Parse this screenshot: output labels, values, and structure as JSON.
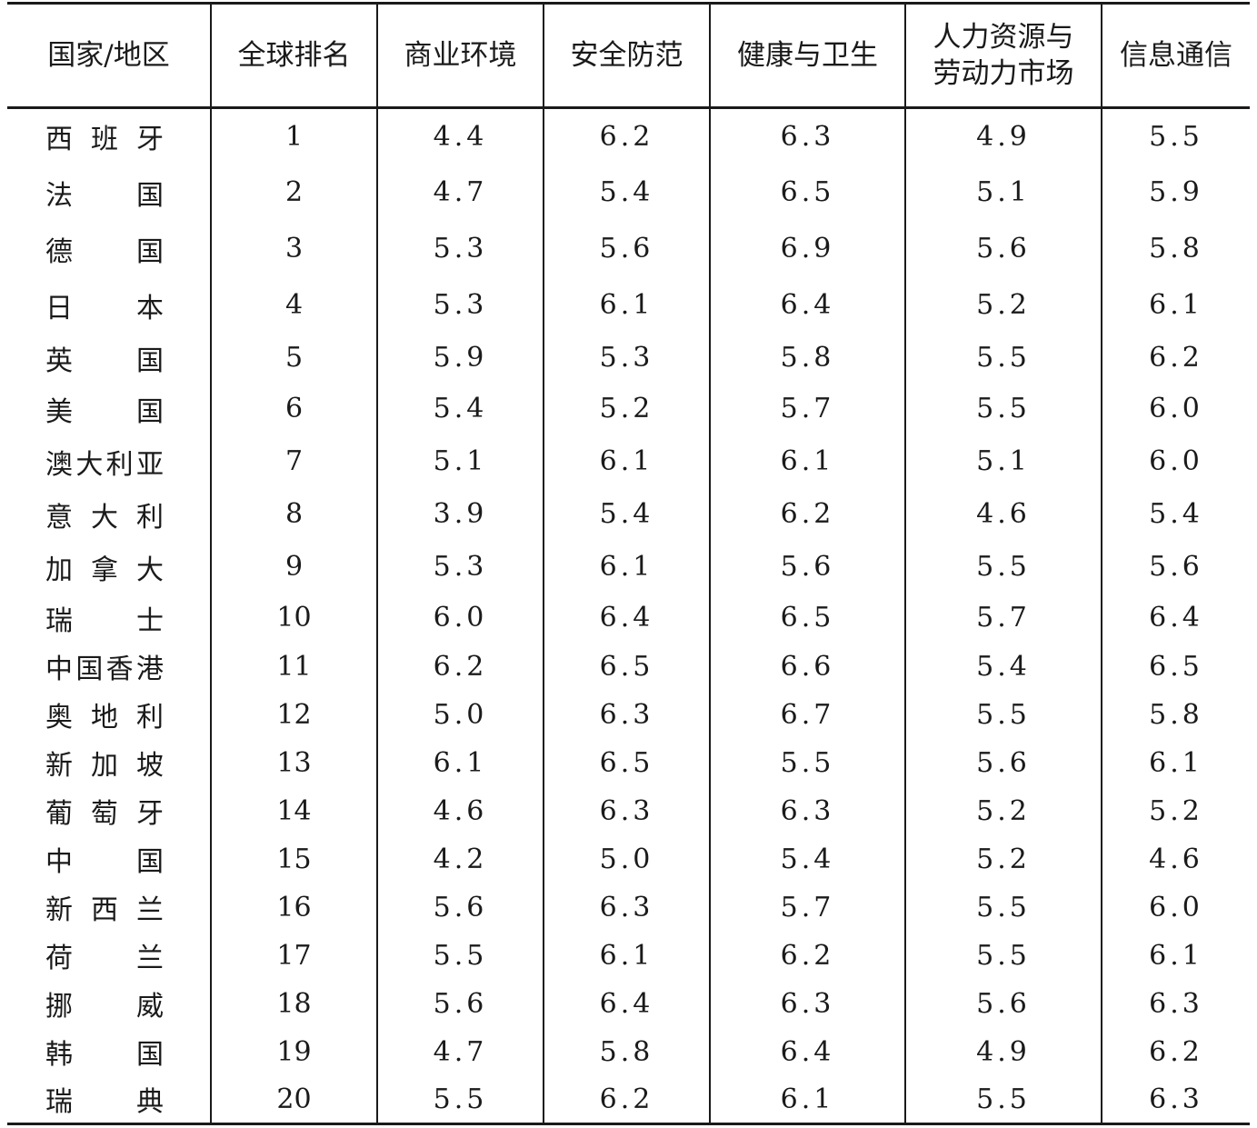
{
  "table": {
    "headers": [
      "国家/地区",
      "全球排名",
      "商业环境",
      "安全防范",
      "健康与卫生",
      "人力资源与劳动力市场",
      "信息通信"
    ],
    "rows": [
      [
        "西班牙",
        "1",
        "4.4",
        "6.2",
        "6.3",
        "4.9",
        "5.5"
      ],
      [
        "法国",
        "2",
        "4.7",
        "5.4",
        "6.5",
        "5.1",
        "5.9"
      ],
      [
        "德国",
        "3",
        "5.3",
        "5.6",
        "6.9",
        "5.6",
        "5.8"
      ],
      [
        "日本",
        "4",
        "5.3",
        "6.1",
        "6.4",
        "5.2",
        "6.1"
      ],
      [
        "英国",
        "5",
        "5.9",
        "5.3",
        "5.8",
        "5.5",
        "6.2"
      ],
      [
        "美国",
        "6",
        "5.4",
        "5.2",
        "5.7",
        "5.5",
        "6.0"
      ],
      [
        "澳大利亚",
        "7",
        "5.1",
        "6.1",
        "6.1",
        "5.1",
        "6.0"
      ],
      [
        "意大利",
        "8",
        "3.9",
        "5.4",
        "6.2",
        "4.6",
        "5.4"
      ],
      [
        "加拿大",
        "9",
        "5.3",
        "6.1",
        "5.6",
        "5.5",
        "5.6"
      ],
      [
        "瑞士",
        "10",
        "6.0",
        "6.4",
        "6.5",
        "5.7",
        "6.4"
      ],
      [
        "中国香港",
        "11",
        "6.2",
        "6.5",
        "6.6",
        "5.4",
        "6.5"
      ],
      [
        "奥地利",
        "12",
        "5.0",
        "6.3",
        "6.7",
        "5.5",
        "5.8"
      ],
      [
        "新加坡",
        "13",
        "6.1",
        "6.5",
        "5.5",
        "5.6",
        "6.1"
      ],
      [
        "葡萄牙",
        "14",
        "4.6",
        "6.3",
        "6.3",
        "5.2",
        "5.2"
      ],
      [
        "中国",
        "15",
        "4.2",
        "5.0",
        "5.4",
        "5.2",
        "4.6"
      ],
      [
        "新西兰",
        "16",
        "5.6",
        "6.3",
        "5.7",
        "5.5",
        "6.0"
      ],
      [
        "荷兰",
        "17",
        "5.5",
        "6.1",
        "6.2",
        "5.5",
        "6.1"
      ],
      [
        "挪威",
        "18",
        "5.6",
        "6.4",
        "6.3",
        "5.6",
        "6.3"
      ],
      [
        "韩国",
        "19",
        "4.7",
        "5.8",
        "6.4",
        "4.9",
        "6.2"
      ],
      [
        "瑞典",
        "20",
        "5.5",
        "6.2",
        "6.1",
        "5.5",
        "6.3"
      ]
    ]
  }
}
